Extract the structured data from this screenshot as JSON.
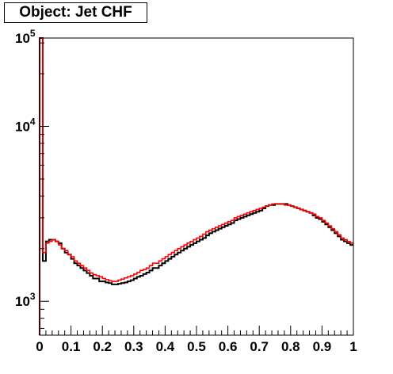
{
  "chart_data": {
    "type": "line",
    "title": "Object: Jet CHF",
    "xlabel": "",
    "ylabel": "",
    "x_range": [
      0,
      1
    ],
    "y_scale": "log",
    "y_range": [
      640,
      32000
    ],
    "x_ticks": [
      "0",
      "0.1",
      "0.2",
      "0.3",
      "0.4",
      "0.5",
      "0.6",
      "0.7",
      "0.8",
      "0.9",
      "1"
    ],
    "y_ticks": [
      {
        "base": "10",
        "exp": "3",
        "value": 1000
      },
      {
        "base": "10",
        "exp": "4",
        "value": 10000
      },
      {
        "base": "10",
        "exp": "5",
        "value": 100000
      }
    ],
    "bin_edges_start": 0,
    "bin_width": 0.01,
    "series": [
      {
        "color": "#000000",
        "values": [
          180000,
          1700,
          2200,
          2250,
          2250,
          2200,
          2150,
          2000,
          1900,
          1850,
          1750,
          1650,
          1600,
          1550,
          1500,
          1450,
          1400,
          1350,
          1350,
          1300,
          1300,
          1280,
          1270,
          1250,
          1250,
          1260,
          1270,
          1280,
          1300,
          1320,
          1350,
          1380,
          1400,
          1430,
          1460,
          1500,
          1550,
          1550,
          1600,
          1650,
          1700,
          1750,
          1800,
          1850,
          1900,
          1950,
          2000,
          2050,
          2100,
          2150,
          2200,
          2250,
          2300,
          2380,
          2450,
          2500,
          2550,
          2600,
          2650,
          2700,
          2750,
          2800,
          2900,
          2950,
          3000,
          3050,
          3100,
          3150,
          3200,
          3250,
          3300,
          3400,
          3500,
          3550,
          3550,
          3600,
          3600,
          3600,
          3600,
          3550,
          3500,
          3450,
          3400,
          3350,
          3300,
          3250,
          3200,
          3100,
          3000,
          2950,
          2850,
          2750,
          2650,
          2550,
          2450,
          2350,
          2250,
          2200,
          2150,
          2100
        ]
      },
      {
        "color": "#ff0000",
        "values": [
          170000,
          1900,
          2150,
          2200,
          2250,
          2200,
          2100,
          2000,
          1950,
          1850,
          1800,
          1700,
          1650,
          1600,
          1550,
          1500,
          1450,
          1420,
          1400,
          1380,
          1350,
          1330,
          1310,
          1300,
          1300,
          1320,
          1340,
          1360,
          1380,
          1400,
          1430,
          1460,
          1500,
          1520,
          1550,
          1600,
          1650,
          1650,
          1700,
          1750,
          1800,
          1850,
          1900,
          1950,
          2000,
          2050,
          2100,
          2150,
          2200,
          2250,
          2300,
          2350,
          2420,
          2500,
          2550,
          2600,
          2650,
          2700,
          2750,
          2800,
          2850,
          2900,
          3000,
          3050,
          3100,
          3150,
          3200,
          3250,
          3300,
          3350,
          3400,
          3450,
          3500,
          3550,
          3600,
          3600,
          3600,
          3600,
          3550,
          3550,
          3500,
          3450,
          3400,
          3350,
          3300,
          3250,
          3200,
          3150,
          3050,
          3000,
          2900,
          2800,
          2700,
          2600,
          2500,
          2400,
          2300,
          2250,
          2200,
          2150
        ]
      }
    ]
  }
}
